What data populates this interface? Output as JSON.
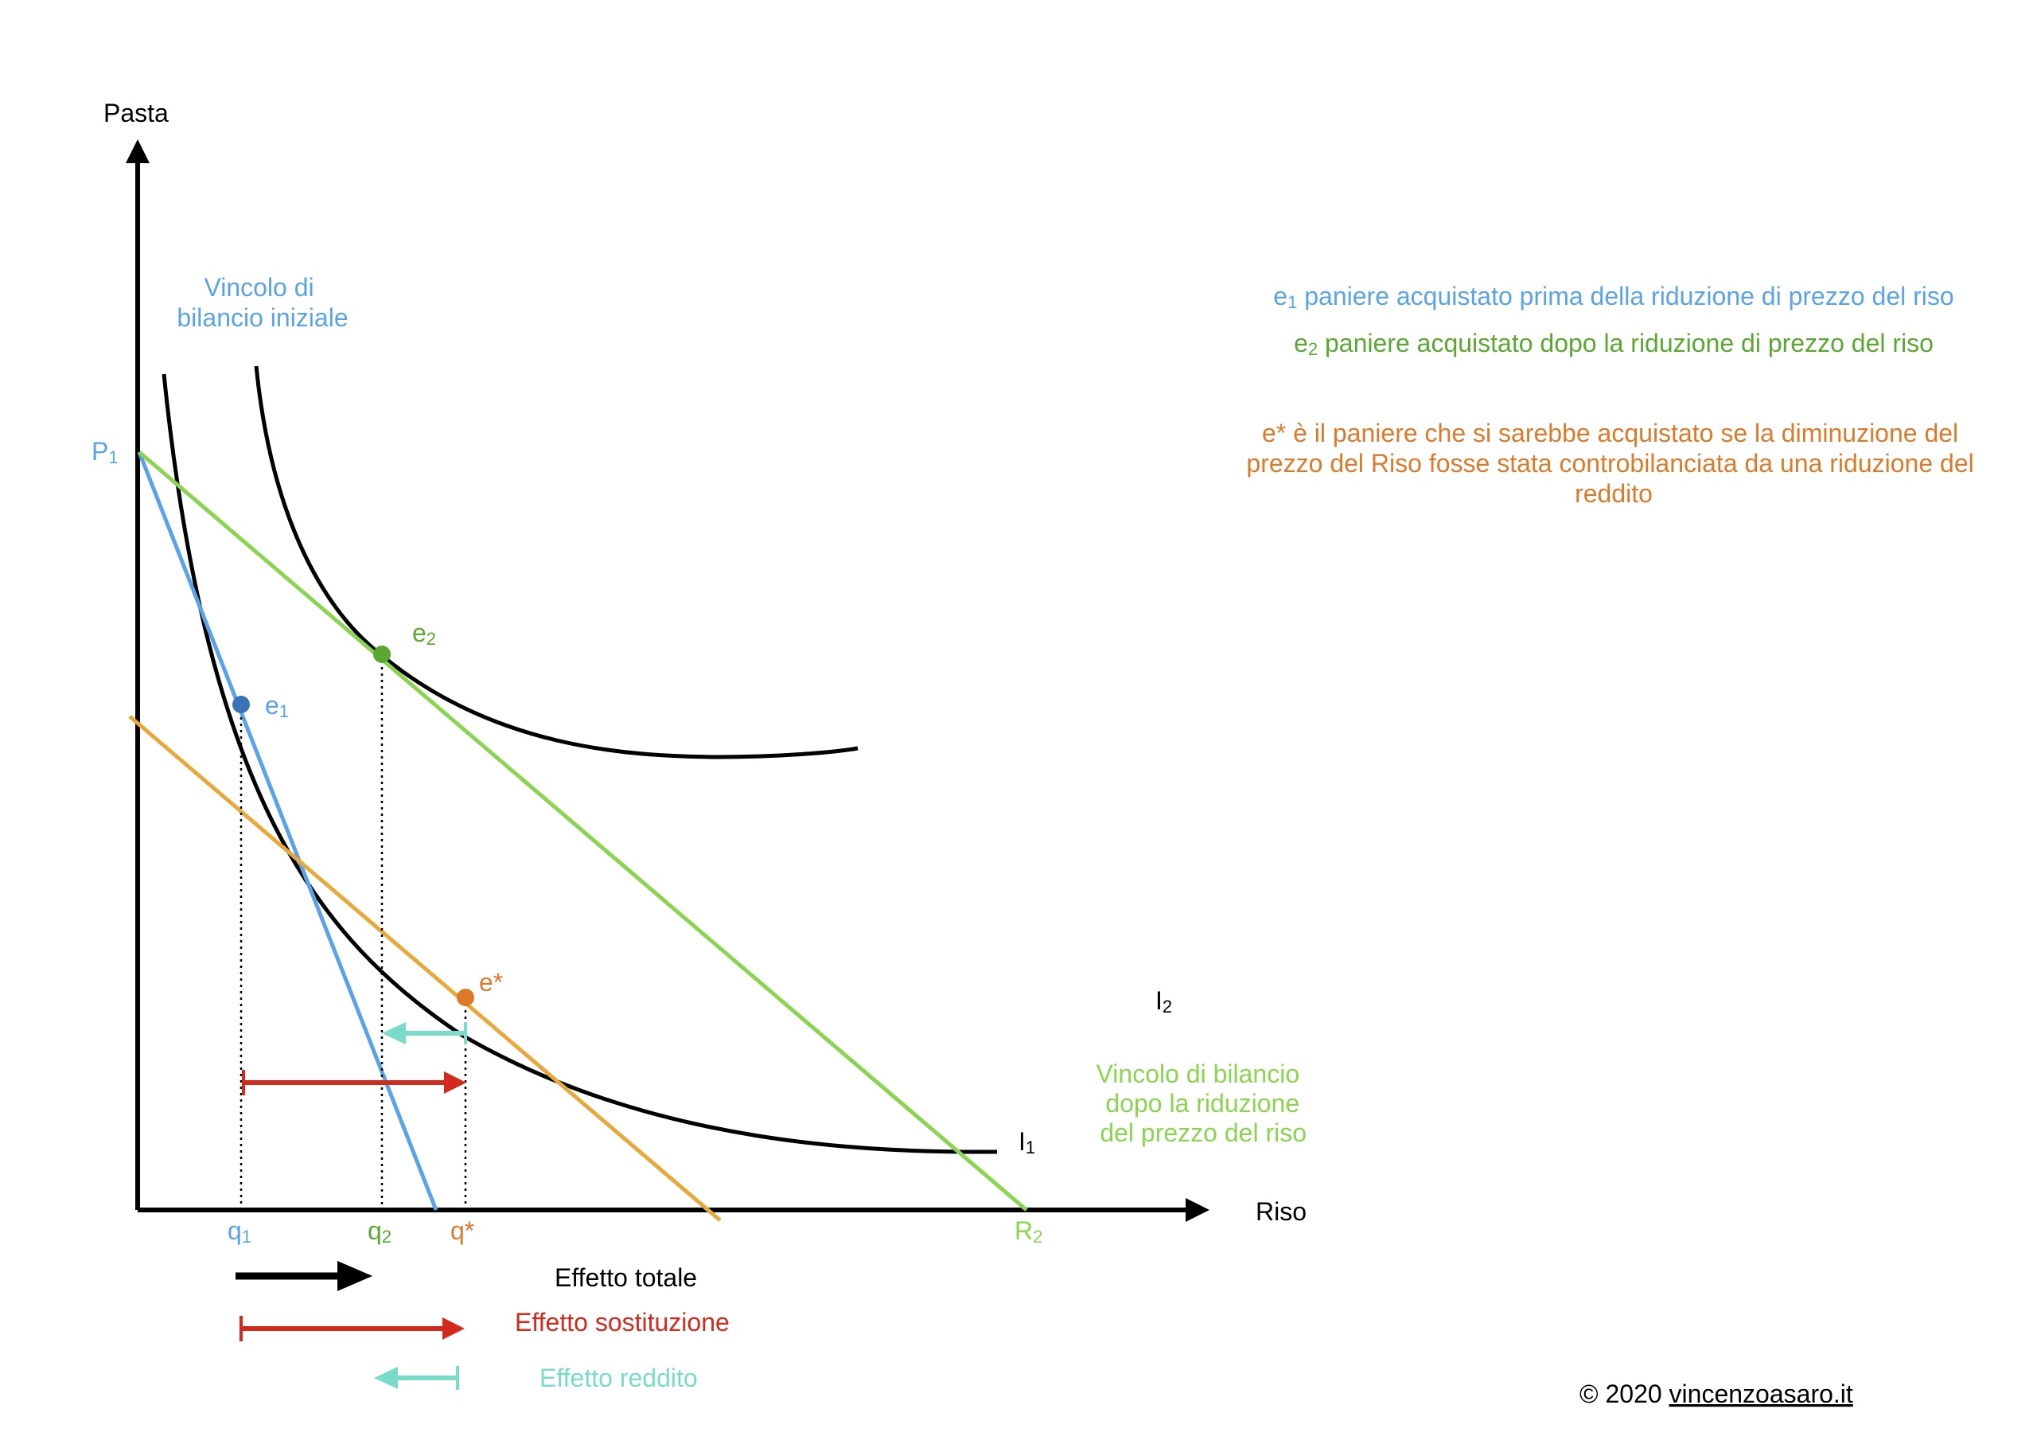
{
  "axes": {
    "y_label": "Pasta",
    "x_label": "Riso"
  },
  "budget_lines": {
    "initial_label_line1": "Vincolo di",
    "initial_label_line2": "bilancio iniziale",
    "after_label_line1": "Vincolo di bilancio",
    "after_label_line2": "dopo la riduzione",
    "after_label_line3": "del prezzo del riso",
    "p1_main": "P",
    "p1_sub": "1",
    "r2_main": "R",
    "r2_sub": "2"
  },
  "curves": {
    "i1_main": "I",
    "i1_sub": "1",
    "i2_main": "I",
    "i2_sub": "2"
  },
  "points": {
    "e1_main": "e",
    "e1_sub": "1",
    "e2_main": "e",
    "e2_sub": "2",
    "estar": "e*"
  },
  "ticks": {
    "q1_main": "q",
    "q1_sub": "1",
    "q2_main": "q",
    "q2_sub": "2",
    "qstar": "q*"
  },
  "notes": {
    "e1_main": "e",
    "e1_sub": "1",
    "e1_text": " paniere acquistato prima della riduzione di prezzo del riso",
    "e2_main": "e",
    "e2_sub": "2",
    "e2_text": " paniere acquistato dopo la riduzione di prezzo del riso",
    "estar_line1": "e* è il paniere che si sarebbe acquistato se la diminuzione del",
    "estar_line2": "prezzo del Riso fosse stata controbilanciata da una riduzione del",
    "estar_line3": "reddito"
  },
  "legend": {
    "total": "Effetto totale",
    "substitution": "Effetto sostituzione",
    "income": "Effetto reddito"
  },
  "copyright": {
    "prefix": "© 2020 ",
    "site": "vincenzoasaro.it"
  },
  "colors": {
    "blue": "#5aa3e8",
    "blue_dark": "#3a72b8",
    "green": "#8bd44f",
    "green_text": "#5aa832",
    "orange": "#e9a93a",
    "orange_text": "#dd7a2a",
    "red": "#d42a1e",
    "teal": "#78dcc8",
    "black": "#000000"
  }
}
